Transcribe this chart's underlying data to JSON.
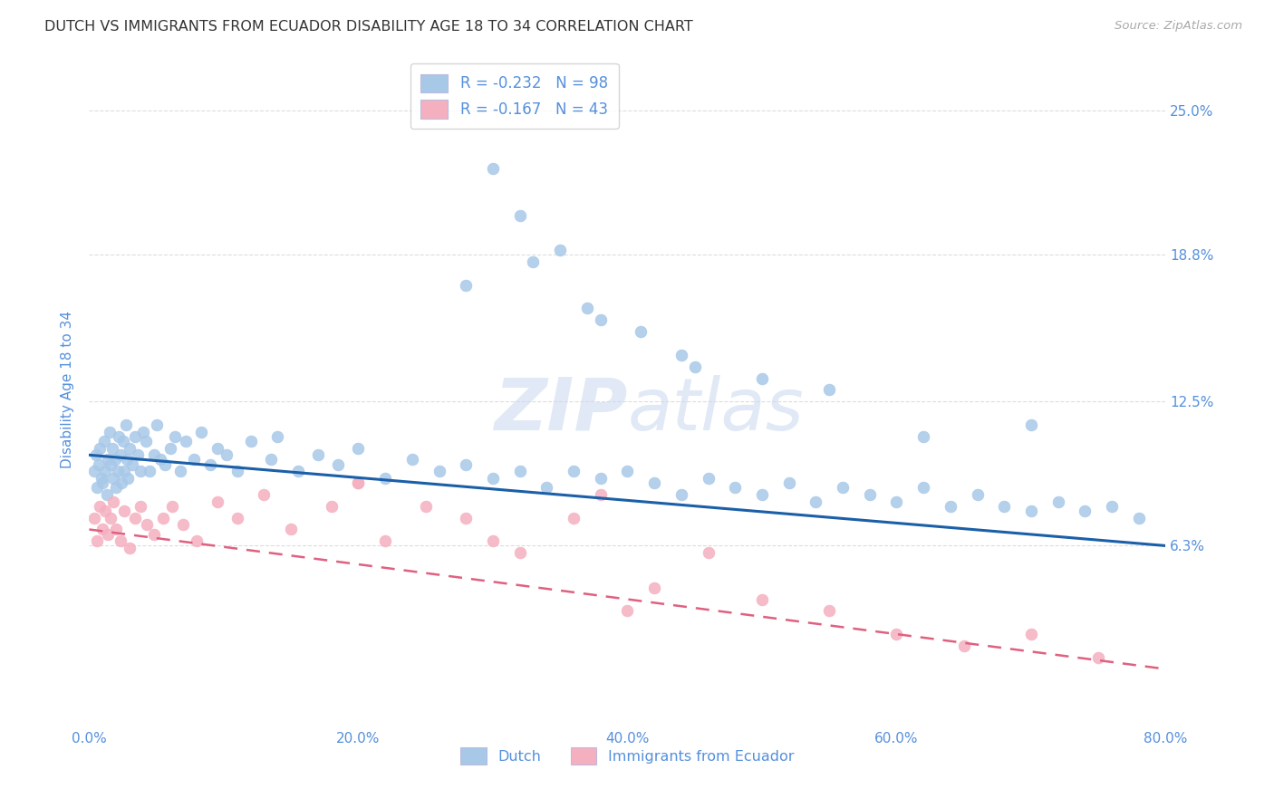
{
  "title": "DUTCH VS IMMIGRANTS FROM ECUADOR DISABILITY AGE 18 TO 34 CORRELATION CHART",
  "source": "Source: ZipAtlas.com",
  "ylabel": "Disability Age 18 to 34",
  "ytick_labels": [
    "6.3%",
    "12.5%",
    "18.8%",
    "25.0%"
  ],
  "ytick_vals": [
    6.3,
    12.5,
    18.8,
    25.0
  ],
  "xtick_vals": [
    0,
    20,
    40,
    60,
    80
  ],
  "xlim": [
    0.0,
    80.0
  ],
  "ylim": [
    -1.5,
    27.5
  ],
  "blue_color": "#a8c8e8",
  "pink_color": "#f5b0c0",
  "blue_line_color": "#1a5fa8",
  "pink_line_color": "#e06080",
  "title_color": "#333333",
  "axis_label_color": "#5590dd",
  "grid_color": "#dddddd",
  "watermark_zip": "ZIP",
  "watermark_atlas": "atlas",
  "watermark_color": "#c8d8ee",
  "source_color": "#aaaaaa",
  "legend_r1": "R = -0.232",
  "legend_n1": "N = 98",
  "legend_r2": "R = -0.167",
  "legend_n2": "N = 43",
  "label_dutch": "Dutch",
  "label_ecuador": "Immigrants from Ecuador",
  "dutch_x": [
    0.4,
    0.5,
    0.6,
    0.7,
    0.8,
    0.9,
    1.0,
    1.1,
    1.2,
    1.3,
    1.4,
    1.5,
    1.6,
    1.7,
    1.8,
    1.9,
    2.0,
    2.1,
    2.2,
    2.3,
    2.4,
    2.5,
    2.6,
    2.7,
    2.8,
    2.9,
    3.0,
    3.2,
    3.4,
    3.6,
    3.8,
    4.0,
    4.2,
    4.5,
    4.8,
    5.0,
    5.3,
    5.6,
    6.0,
    6.4,
    6.8,
    7.2,
    7.8,
    8.3,
    9.0,
    9.5,
    10.2,
    11.0,
    12.0,
    13.5,
    14.0,
    15.5,
    17.0,
    18.5,
    20.0,
    22.0,
    24.0,
    26.0,
    28.0,
    30.0,
    32.0,
    34.0,
    36.0,
    38.0,
    40.0,
    42.0,
    44.0,
    46.0,
    48.0,
    50.0,
    52.0,
    54.0,
    56.0,
    58.0,
    60.0,
    62.0,
    64.0,
    66.0,
    68.0,
    70.0,
    72.0,
    74.0,
    76.0,
    78.0,
    30.0,
    32.0,
    35.0,
    38.0,
    41.0,
    44.0,
    28.0,
    33.0,
    37.0,
    45.0,
    50.0,
    55.0,
    62.0,
    70.0
  ],
  "dutch_y": [
    9.5,
    10.2,
    8.8,
    9.8,
    10.5,
    9.2,
    9.0,
    10.8,
    9.5,
    8.5,
    10.0,
    11.2,
    9.8,
    10.5,
    9.2,
    10.0,
    8.8,
    9.5,
    11.0,
    10.2,
    9.0,
    10.8,
    9.5,
    11.5,
    10.0,
    9.2,
    10.5,
    9.8,
    11.0,
    10.2,
    9.5,
    11.2,
    10.8,
    9.5,
    10.2,
    11.5,
    10.0,
    9.8,
    10.5,
    11.0,
    9.5,
    10.8,
    10.0,
    11.2,
    9.8,
    10.5,
    10.2,
    9.5,
    10.8,
    10.0,
    11.0,
    9.5,
    10.2,
    9.8,
    10.5,
    9.2,
    10.0,
    9.5,
    9.8,
    9.2,
    9.5,
    8.8,
    9.5,
    9.2,
    9.5,
    9.0,
    8.5,
    9.2,
    8.8,
    8.5,
    9.0,
    8.2,
    8.8,
    8.5,
    8.2,
    8.8,
    8.0,
    8.5,
    8.0,
    7.8,
    8.2,
    7.8,
    8.0,
    7.5,
    22.5,
    20.5,
    19.0,
    16.0,
    15.5,
    14.5,
    17.5,
    18.5,
    16.5,
    14.0,
    13.5,
    13.0,
    11.0,
    11.5
  ],
  "ecuador_x": [
    0.4,
    0.6,
    0.8,
    1.0,
    1.2,
    1.4,
    1.6,
    1.8,
    2.0,
    2.3,
    2.6,
    3.0,
    3.4,
    3.8,
    4.3,
    4.8,
    5.5,
    6.2,
    7.0,
    8.0,
    9.5,
    11.0,
    13.0,
    15.0,
    18.0,
    20.0,
    22.0,
    25.0,
    28.0,
    32.0,
    36.0,
    38.0,
    42.0,
    46.0,
    50.0,
    55.0,
    60.0,
    65.0,
    70.0,
    75.0,
    30.0,
    20.0,
    40.0
  ],
  "ecuador_y": [
    7.5,
    6.5,
    8.0,
    7.0,
    7.8,
    6.8,
    7.5,
    8.2,
    7.0,
    6.5,
    7.8,
    6.2,
    7.5,
    8.0,
    7.2,
    6.8,
    7.5,
    8.0,
    7.2,
    6.5,
    8.2,
    7.5,
    8.5,
    7.0,
    8.0,
    9.0,
    6.5,
    8.0,
    7.5,
    6.0,
    7.5,
    8.5,
    4.5,
    6.0,
    4.0,
    3.5,
    2.5,
    2.0,
    2.5,
    1.5,
    6.5,
    9.0,
    3.5
  ]
}
